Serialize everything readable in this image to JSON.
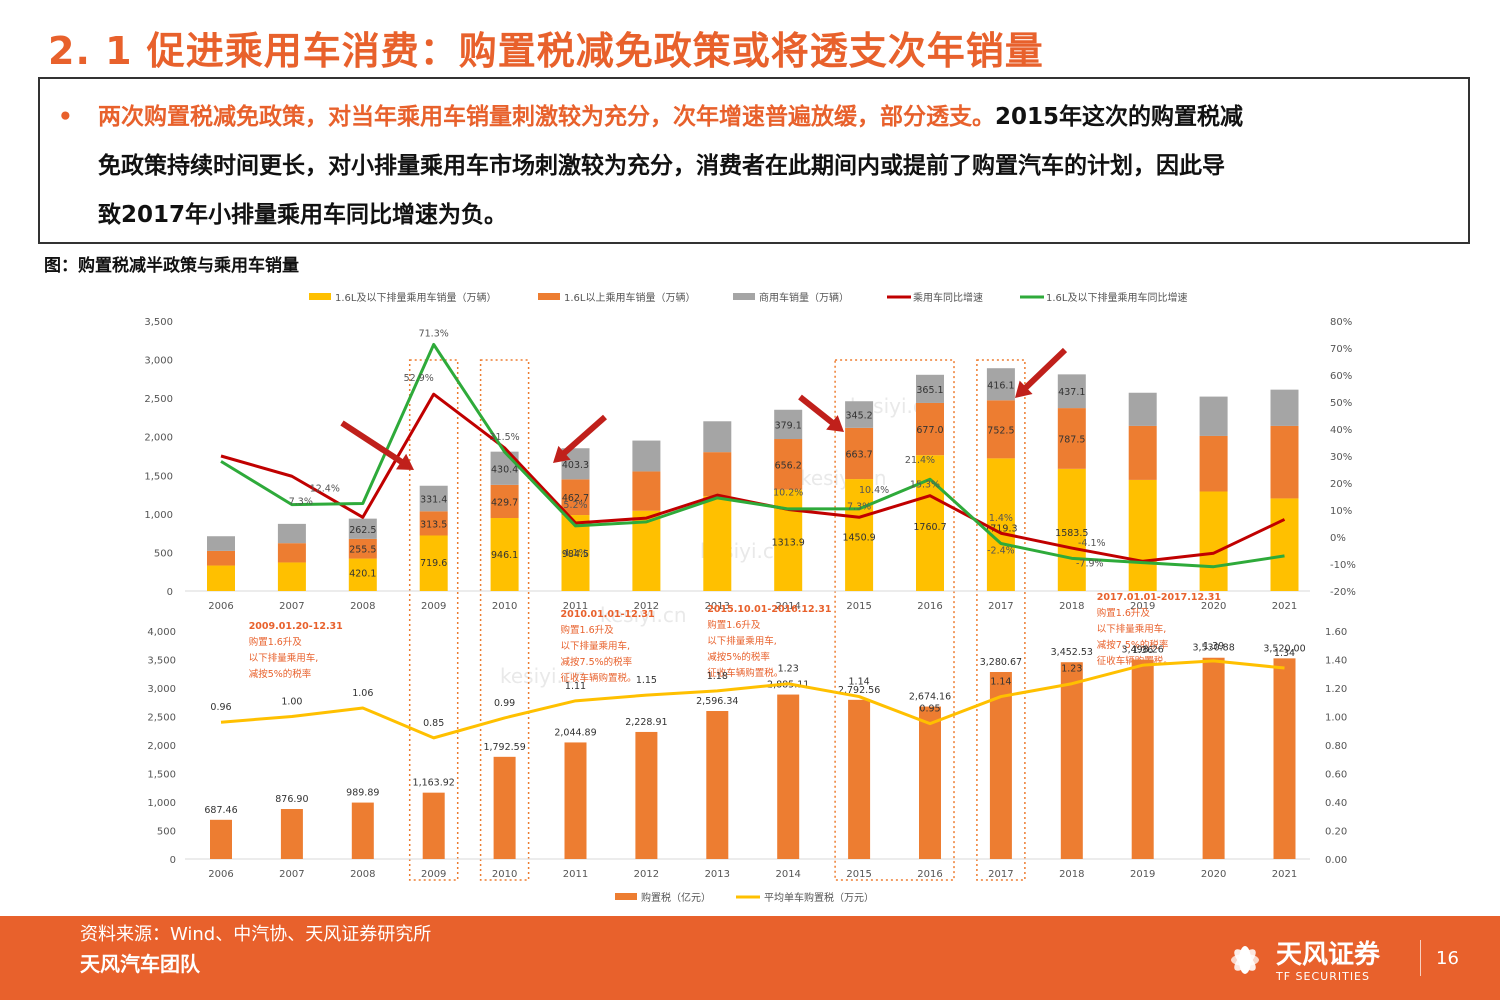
{
  "title": "2. 1 促进乘用车消费：购置税减免政策或将透支次年销量",
  "callout": {
    "bullet": "•",
    "highlight": "两次购置税减免政策，对当年乘用车销量刺激较为充分，次年增速普遍放缓，部分透支。",
    "line1_rest": "2015年这次的购置税减",
    "line2": "免政策持续时间更长，对小排量乘用车市场刺激较为充分，消费者在此期间内或提前了购置汽车的计划，因此导",
    "line3": "致2017年小排量乘用车同比增速为负。"
  },
  "figure_label": "图：购置税减半政策与乘用车销量",
  "colors": {
    "accent": "#E8612C",
    "small_car": "#FFC000",
    "large_car": "#ED7D31",
    "commercial": "#A5A5A5",
    "pv_growth": "#C00000",
    "small_growth": "#2EAA3A",
    "avg_tax": "#FFC000",
    "dotted_box": "#ED7D31"
  },
  "chart_data": [
    {
      "type": "bar",
      "stacked": true,
      "categories": [
        "2006",
        "2007",
        "2008",
        "2009",
        "2010",
        "2011",
        "2012",
        "2013",
        "2014",
        "2015",
        "2016",
        "2017",
        "2018",
        "2019",
        "2020",
        "2021"
      ],
      "series": [
        {
          "name": "1.6L及以下排量乘用车销量（万辆）",
          "values": [
            330,
            370,
            420.1,
            719.6,
            946.1,
            984.5,
            1040,
            1230,
            1313.9,
            1450.9,
            1760.7,
            1719.3,
            1583.5,
            1440,
            1290,
            1200
          ]
        },
        {
          "name": "1.6L以上乘用车销量（万辆）",
          "values": [
            190,
            250,
            255.5,
            313.5,
            429.7,
            462.7,
            510,
            570,
            656.2,
            663.7,
            677.0,
            752.5,
            787.5,
            700,
            720,
            940
          ]
        },
        {
          "name": "商用车销量（万辆）",
          "values": [
            190,
            250,
            262.5,
            331.4,
            430.4,
            403.3,
            400,
            400,
            379.1,
            345.2,
            365.1,
            416.1,
            437.1,
            430,
            510,
            470
          ]
        }
      ],
      "lines": [
        {
          "name": "乘用车同比增速",
          "values": [
            30,
            22.5,
            7.3,
            52.9,
            33,
            5.2,
            7,
            15.5,
            10.2,
            7.3,
            15.3,
            1.4,
            -4.1,
            -9,
            -6,
            6.5
          ]
        },
        {
          "name": "1.6L及以下排量乘用车同比增速",
          "values": [
            28,
            12,
            12.4,
            71.3,
            31.5,
            4.1,
            5.6,
            14.5,
            10.4,
            10.4,
            21.4,
            -2.4,
            -7.9,
            -9.5,
            -11,
            -7
          ]
        }
      ],
      "ylim": [
        0,
        3500
      ],
      "yticks": [
        "3,500",
        "3,000",
        "2,500",
        "2,000",
        "1,500",
        "1,000",
        "500",
        "0"
      ],
      "y2lim": [
        -20,
        80
      ],
      "y2ticks": [
        "80%",
        "70%",
        "60%",
        "50%",
        "40%",
        "30%",
        "20%",
        "10%",
        "0%",
        "-10%",
        "-20%"
      ],
      "bar_labels": {
        "small": {
          "2008": "420.1",
          "2009": "719.6",
          "2010": "946.1",
          "2011": "984.5",
          "2014": "1313.9",
          "2015": "1450.9",
          "2016": "1760.7",
          "2017": "1719.3",
          "2018": "1583.5"
        },
        "large": {
          "2008": "255.5",
          "2009": "313.5",
          "2010": "429.7",
          "2011": "462.7",
          "2014": "656.2",
          "2015": "663.7",
          "2016": "677.0",
          "2017": "752.5",
          "2018": "787.5"
        },
        "comm": {
          "2008": "262.5",
          "2009": "331.4",
          "2010": "430.4",
          "2011": "403.3",
          "2014": "379.1",
          "2015": "345.2",
          "2016": "365.1",
          "2017": "416.1",
          "2018": "437.1"
        }
      },
      "growth_labels": [
        {
          "cat": "2008",
          "val": 7.3,
          "text": "7.3%",
          "dx": -62,
          "dy": -13
        },
        {
          "cat": "2008",
          "val": 12.4,
          "text": "12.4%",
          "dx": -38,
          "dy": -12
        },
        {
          "cat": "2009",
          "val": 71.3,
          "text": "71.3%",
          "dy": -8
        },
        {
          "cat": "2009",
          "val": 52.9,
          "text": "52.9%",
          "dx": -15,
          "dy": -13
        },
        {
          "cat": "2010",
          "val": 31.5,
          "text": "31.5%",
          "dy": -12
        },
        {
          "cat": "2011",
          "val": 5.2,
          "text": "5.2%",
          "dy": -15
        },
        {
          "cat": "2011",
          "val": 4.1,
          "text": "4.1%",
          "dy": 30
        },
        {
          "cat": "2014",
          "val": 10.2,
          "text": "10.2%",
          "dy": -14
        },
        {
          "cat": "2015",
          "val": 10.4,
          "text": "10.4%",
          "dx": 15,
          "dy": -16
        },
        {
          "cat": "2015",
          "val": 7.3,
          "text": "7.3%",
          "dy": -8
        },
        {
          "cat": "2016",
          "val": 21.4,
          "text": "21.4%",
          "dx": -10,
          "dy": -16
        },
        {
          "cat": "2016",
          "val": 15.3,
          "text": "15.3%",
          "dx": -5,
          "dy": -8
        },
        {
          "cat": "2017",
          "val": 1.4,
          "text": "1.4%",
          "dy": -12
        },
        {
          "cat": "2017",
          "val": -2.4,
          "text": "-2.4%",
          "dy": 10
        },
        {
          "cat": "2018",
          "val": -4.1,
          "text": "-4.1%",
          "dx": 20,
          "dy": -2
        },
        {
          "cat": "2018",
          "val": -7.9,
          "text": "-7.9%",
          "dx": 18,
          "dy": 8
        }
      ],
      "annotations": [
        {
          "cat": "2009",
          "x_offset": -185,
          "y": 349,
          "lines": [
            "2009.01.20-12.31",
            "购置1.6升及",
            "以下排量乘用车,",
            "减按5%的税率"
          ],
          "bold_token": "5%"
        },
        {
          "cat": "2011",
          "x_offset": -15,
          "y": 337,
          "lines": [
            "2010.01.01-12.31",
            "购置1.6升及",
            "以下排量乘用车,",
            "减按7.5%的税率",
            "征收车辆购置税。"
          ],
          "bold_token": "7.5%"
        },
        {
          "cat": "2013",
          "x_offset": -10,
          "y": 332,
          "lines": [
            "2015.10.01-2016.12.31",
            "购置1.6升及",
            "以下排量乘用车,",
            "减按5%的税率",
            "征收车辆购置税。"
          ],
          "bold_token": "5%"
        },
        {
          "cat": "2018",
          "x_offset": 25,
          "y": 320,
          "lines": [
            "2017.01.01-2017.12.31",
            "购置1.6升及",
            "以下排量乘用车,",
            "减按7.5%的税率",
            "征收车辆购置税。"
          ],
          "bold_token": "7.5%"
        }
      ],
      "legend": [
        "1.6L及以下排量乘用车销量（万辆）",
        "1.6L以上乘用车销量（万辆）",
        "商用车销量（万辆）",
        "乘用车同比增速",
        "1.6L及以下排量乘用车同比增速"
      ]
    },
    {
      "type": "bar",
      "categories": [
        "2006",
        "2007",
        "2008",
        "2009",
        "2010",
        "2011",
        "2012",
        "2013",
        "2014",
        "2015",
        "2016",
        "2017",
        "2018",
        "2019",
        "2020",
        "2021"
      ],
      "series": [
        {
          "name": "购置税（亿元）",
          "values": [
            687.46,
            876.9,
            989.89,
            1163.92,
            1792.59,
            2044.89,
            2228.91,
            2596.34,
            2885.11,
            2792.56,
            2674.16,
            3280.67,
            3452.53,
            3498.26,
            3530.88,
            3520.0
          ],
          "labels": [
            "687.46",
            "876.90",
            "989.89",
            "1,163.92",
            "1,792.59",
            "2,044.89",
            "2,228.91",
            "2,596.34",
            "2,885.11",
            "2,792.56",
            "2,674.16",
            "3,280.67",
            "3,452.53",
            "3,498.26",
            "3,530.88",
            "3,520.00"
          ]
        }
      ],
      "lines": [
        {
          "name": "平均单车购置税（万元）",
          "values": [
            0.96,
            1.0,
            1.06,
            0.85,
            0.99,
            1.11,
            1.15,
            1.18,
            1.23,
            1.14,
            0.95,
            1.14,
            1.23,
            1.36,
            1.39,
            1.34
          ],
          "labels": [
            "0.96",
            "1.00",
            "1.06",
            "0.85",
            "0.99",
            "1.11",
            "1.15",
            "1.18",
            "1.23",
            "1.14",
            "0.95",
            "1.14",
            "1.23",
            "1.36",
            "1.39",
            "1.34"
          ]
        }
      ],
      "ylim": [
        0,
        4000
      ],
      "yticks": [
        "4,000",
        "3,500",
        "3,000",
        "2,500",
        "2,000",
        "1,500",
        "1,000",
        "500",
        "0"
      ],
      "y2lim": [
        0,
        1.6
      ],
      "y2ticks": [
        "1.60",
        "1.40",
        "1.20",
        "1.00",
        "0.80",
        "0.60",
        "0.40",
        "0.20",
        "0.00"
      ],
      "legend": [
        "购置税（亿元）",
        "平均单车购置税（万元）"
      ]
    }
  ],
  "highlight_years": [
    "2009",
    "2010",
    "2015",
    "2016",
    "2017"
  ],
  "watermark": "kesiyi.cn",
  "footer": {
    "source": "资料来源：Wind、中汽协、天风证券研究所",
    "team": "天风汽车团队",
    "logo_cn": "天风证券",
    "logo_en": "TF SECURITIES",
    "page": "16"
  }
}
